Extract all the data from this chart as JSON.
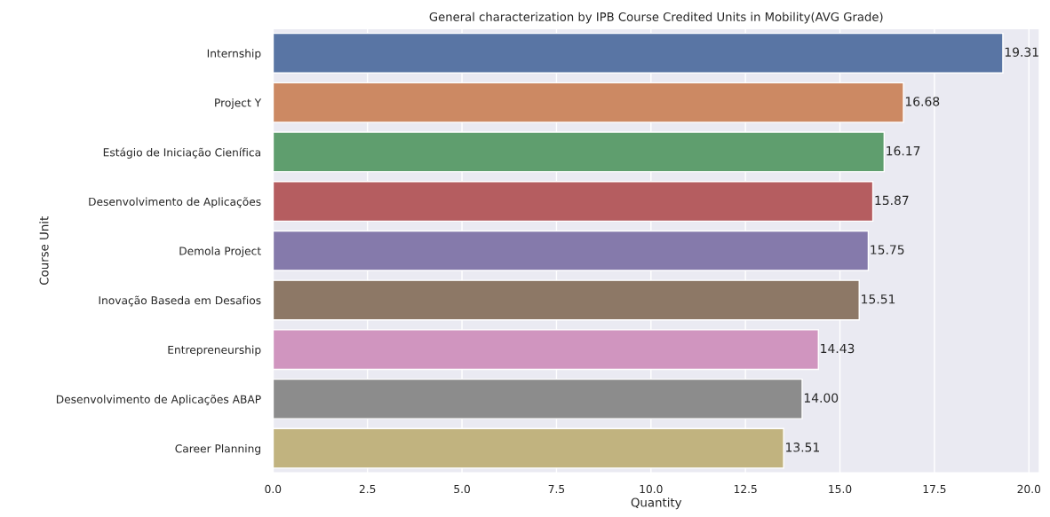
{
  "chart_data": {
    "type": "bar",
    "orientation": "horizontal",
    "title": "General characterization by IPB Course Credited Units in Mobility(AVG Grade)",
    "xlabel": "Quantity",
    "ylabel": "Course Unit",
    "categories": [
      "Internship",
      "Project Y",
      "Estágio de Iniciação Cienífica",
      "Desenvolvimento de Aplicações",
      "Demola Project",
      "Inovação Baseda em Desafios",
      "Entrepreneurship",
      "Desenvolvimento de Aplicações ABAP",
      "Career Planning"
    ],
    "values": [
      19.31,
      16.68,
      16.17,
      15.87,
      15.75,
      15.51,
      14.43,
      14.0,
      13.51
    ],
    "value_labels": [
      "19.31",
      "16.68",
      "16.17",
      "15.87",
      "15.75",
      "15.51",
      "14.43",
      "14.00",
      "13.51"
    ],
    "colors": [
      "#5975a4",
      "#cc8963",
      "#5f9e6e",
      "#b55d60",
      "#857aab",
      "#8d7866",
      "#d095bf",
      "#8c8c8c",
      "#c1b37f"
    ],
    "xlim": [
      0,
      20.28
    ],
    "xticks": [
      {
        "value": 0,
        "label": "0.0"
      },
      2.5,
      {
        "value": 5,
        "label": "5.0"
      },
      7.5,
      {
        "value": 10,
        "label": "10.0"
      },
      12.5,
      {
        "value": 15,
        "label": "15.0"
      },
      17.5,
      {
        "value": 20,
        "label": "20.0"
      }
    ],
    "grid": "x"
  }
}
